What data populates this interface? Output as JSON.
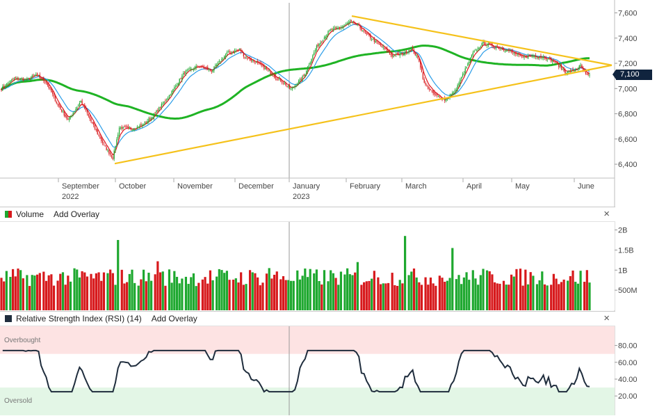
{
  "chart_data": [
    {
      "type": "candlestick",
      "title": "",
      "y_axis": {
        "ticks": [
          6400,
          6600,
          6800,
          7000,
          7200,
          7400,
          7600
        ],
        "tick_labels": [
          "6,400",
          "6,600",
          "6,800",
          "7,000",
          "7,200",
          "7,400",
          "7,600"
        ],
        "range": [
          6290,
          7680
        ],
        "position": "right"
      },
      "x_axis": {
        "months": [
          "September",
          "October",
          "November",
          "December",
          "January",
          "February",
          "March",
          "April",
          "May",
          "June"
        ],
        "year_labels": {
          "September": "2022",
          "January": "2023"
        }
      },
      "last_price_label": "7,100",
      "anchors": [
        {
          "t": 0,
          "c": 7000
        },
        {
          "t": 10,
          "c": 7080
        },
        {
          "t": 20,
          "c": 7070
        },
        {
          "t": 27,
          "c": 7110
        },
        {
          "t": 35,
          "c": 7050
        },
        {
          "t": 44,
          "c": 6870
        },
        {
          "t": 52,
          "c": 6750
        },
        {
          "t": 62,
          "c": 6900
        },
        {
          "t": 71,
          "c": 6720
        },
        {
          "t": 80,
          "c": 6550
        },
        {
          "t": 87,
          "c": 6450
        },
        {
          "t": 92,
          "c": 6690
        },
        {
          "t": 102,
          "c": 6680
        },
        {
          "t": 110,
          "c": 6710
        },
        {
          "t": 118,
          "c": 6780
        },
        {
          "t": 126,
          "c": 6880
        },
        {
          "t": 132,
          "c": 6960
        },
        {
          "t": 143,
          "c": 7130
        },
        {
          "t": 154,
          "c": 7180
        },
        {
          "t": 164,
          "c": 7140
        },
        {
          "t": 176,
          "c": 7280
        },
        {
          "t": 186,
          "c": 7310
        },
        {
          "t": 190,
          "c": 7250
        },
        {
          "t": 198,
          "c": 7210
        },
        {
          "t": 206,
          "c": 7160
        },
        {
          "t": 214,
          "c": 7090
        },
        {
          "t": 220,
          "c": 7050
        },
        {
          "t": 226,
          "c": 6990
        },
        {
          "t": 236,
          "c": 7100
        },
        {
          "t": 246,
          "c": 7330
        },
        {
          "t": 256,
          "c": 7460
        },
        {
          "t": 266,
          "c": 7490
        },
        {
          "t": 272,
          "c": 7530
        },
        {
          "t": 278,
          "c": 7500
        },
        {
          "t": 286,
          "c": 7420
        },
        {
          "t": 296,
          "c": 7340
        },
        {
          "t": 305,
          "c": 7260
        },
        {
          "t": 314,
          "c": 7280
        },
        {
          "t": 320,
          "c": 7320
        },
        {
          "t": 326,
          "c": 7220
        },
        {
          "t": 330,
          "c": 7040
        },
        {
          "t": 338,
          "c": 6950
        },
        {
          "t": 346,
          "c": 6910
        },
        {
          "t": 354,
          "c": 6980
        },
        {
          "t": 362,
          "c": 7150
        },
        {
          "t": 368,
          "c": 7280
        },
        {
          "t": 376,
          "c": 7360
        },
        {
          "t": 386,
          "c": 7330
        },
        {
          "t": 396,
          "c": 7300
        },
        {
          "t": 406,
          "c": 7250
        },
        {
          "t": 414,
          "c": 7260
        },
        {
          "t": 424,
          "c": 7250
        },
        {
          "t": 432,
          "c": 7210
        },
        {
          "t": 440,
          "c": 7130
        },
        {
          "t": 446,
          "c": 7140
        },
        {
          "t": 452,
          "c": 7180
        },
        {
          "t": 456,
          "c": 7110
        },
        {
          "t": 459,
          "c": 7100
        }
      ],
      "indicators": [
        {
          "name": "",
          "type": "EMA",
          "period": 5,
          "color": "#e0141e"
        },
        {
          "name": "",
          "type": "EMA",
          "period": 13,
          "color": "#2b9de8"
        },
        {
          "name": "",
          "type": "SMA",
          "period": 100,
          "color": "#1fb324"
        }
      ],
      "trendlines": [
        {
          "points": [
            [
              "2022-10-12",
              6405
            ],
            [
              "2023-06-19",
              7185
            ]
          ],
          "color": "#f5c21b"
        },
        {
          "points": [
            [
              "2023-02-02",
              7575
            ],
            [
              "2023-06-19",
              7185
            ]
          ],
          "color": "#f5c21b"
        }
      ]
    },
    {
      "type": "bar",
      "title": "Volume",
      "y_axis": {
        "ticks": [
          500000000,
          1000000000,
          1500000000,
          2000000000
        ],
        "tick_labels": [
          "500M",
          "1B",
          "1.5B",
          "2B"
        ]
      },
      "note_colors": {
        "up": "#1ea82f",
        "down": "#d7191c"
      }
    },
    {
      "type": "line",
      "title": "Relative Strength Index (RSI) (14)",
      "y_axis": {
        "ticks": [
          20,
          40,
          60,
          80
        ],
        "tick_labels": [
          "20.00",
          "40.00",
          "60.00",
          "80.00"
        ],
        "range": [
          0,
          100
        ]
      },
      "zones": {
        "overbought": {
          "from": 70,
          "to": 100,
          "label": "Overbought",
          "color": "#fde3e3"
        },
        "oversold": {
          "from": 0,
          "to": 30,
          "label": "Oversold",
          "color": "#e3f6e6"
        }
      },
      "line_color": "#1f2d3d"
    }
  ],
  "panels": {
    "volume": {
      "title": "Volume",
      "add_overlay": "Add Overlay",
      "close": "×"
    },
    "rsi": {
      "title": "Relative Strength Index (RSI) (14)",
      "add_overlay": "Add Overlay",
      "close": "×"
    }
  },
  "price_tag": "7,100"
}
